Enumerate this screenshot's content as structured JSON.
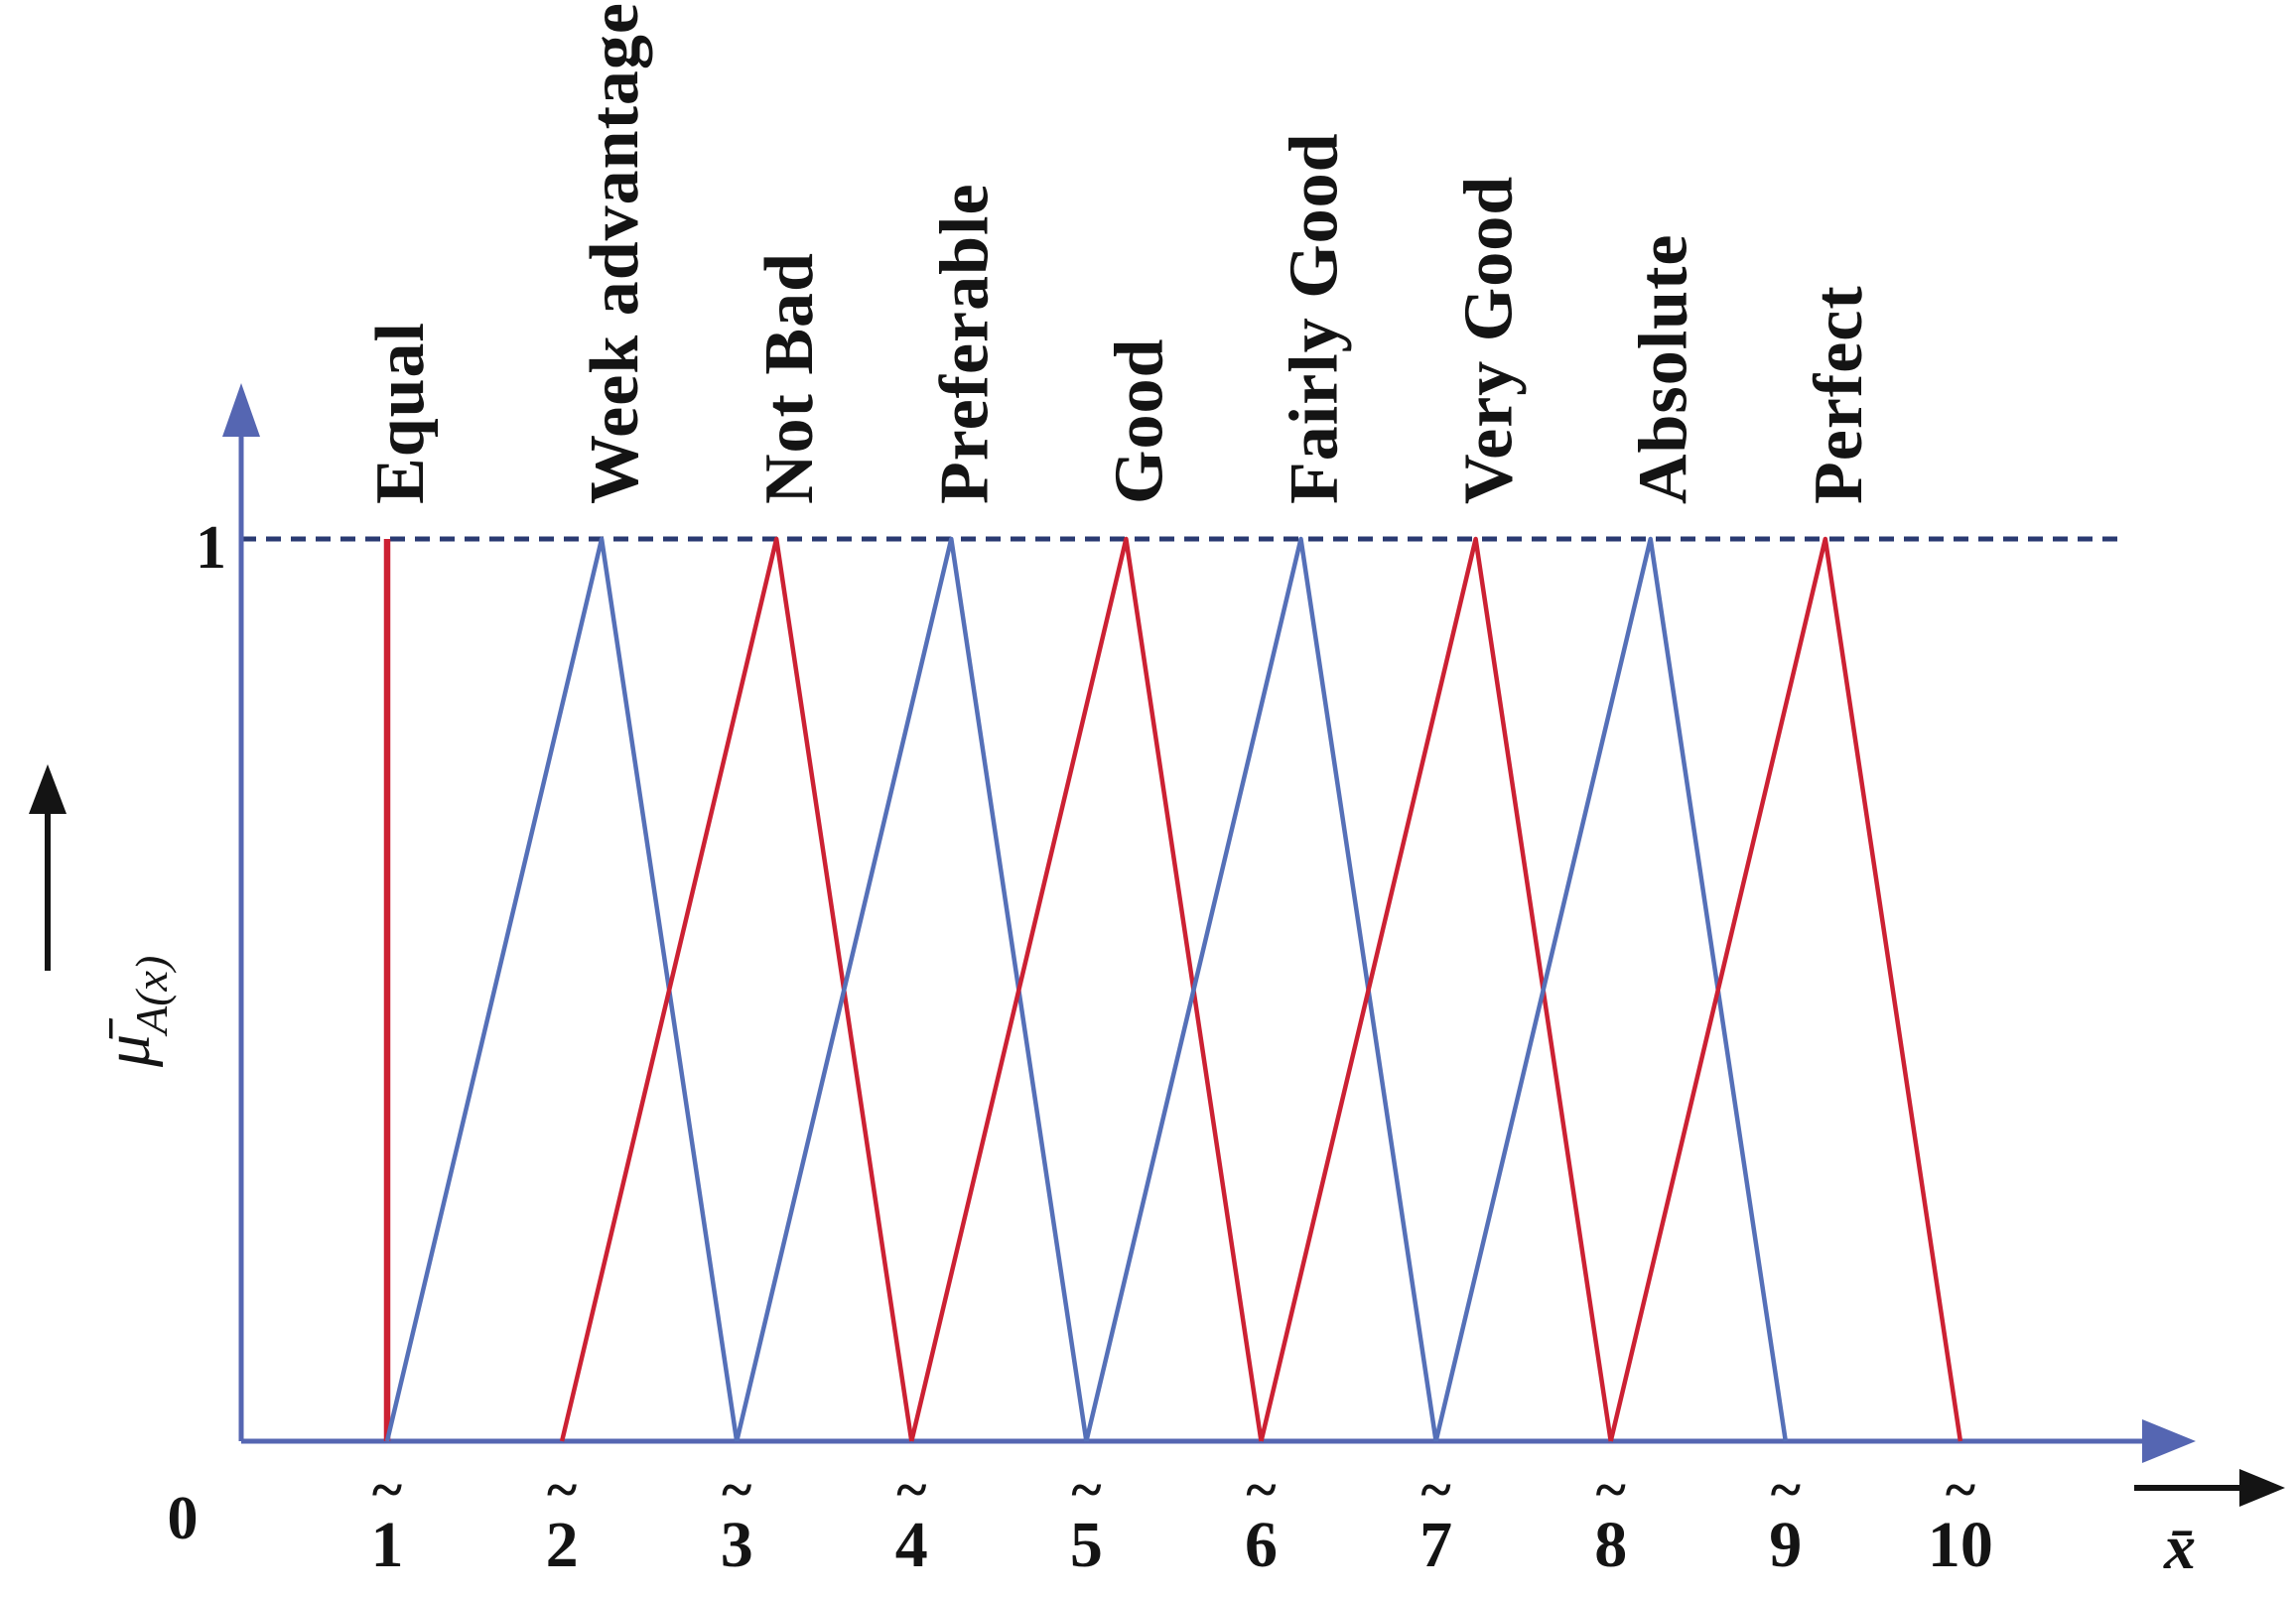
{
  "style": {
    "axis_color": "#5566b2",
    "dashed_line_color": "#2a3a72",
    "text_color": "#141414",
    "red": "#cc2133",
    "blue": "#5570b8"
  },
  "chart_data": {
    "type": "line",
    "description_of_plot": "Triangular fuzzy membership functions of a 1-10 linguistic comparison scale",
    "xlabel": "x̄",
    "ylabel": "μ̄A(x)",
    "ylabel_base": "μ̄",
    "ylabel_sub": "A(x)",
    "xlim": [
      0,
      11.5
    ],
    "ylim": [
      0,
      1
    ],
    "grid": false,
    "legend_position": "none",
    "y_tick_top": "1",
    "y_tick_origin": "0",
    "x_tick_accent": "~",
    "x_ticks": [
      "1",
      "2",
      "3",
      "4",
      "5",
      "6",
      "7",
      "8",
      "9",
      "10"
    ],
    "reference_line": {
      "y": 1,
      "style": "dashed"
    },
    "series": [
      {
        "name": "Equal",
        "color": "#cc2133",
        "points": [
          [
            1,
            0
          ],
          [
            1,
            1
          ]
        ]
      },
      {
        "name": "Week advantage",
        "color": "#5570b8",
        "points": [
          [
            1,
            0
          ],
          [
            2,
            1
          ],
          [
            3,
            0
          ]
        ]
      },
      {
        "name": "Not Bad",
        "color": "#cc2133",
        "points": [
          [
            2,
            0
          ],
          [
            3,
            1
          ],
          [
            4,
            0
          ]
        ]
      },
      {
        "name": "Preferable",
        "color": "#5570b8",
        "points": [
          [
            3,
            0
          ],
          [
            4,
            1
          ],
          [
            5,
            0
          ]
        ]
      },
      {
        "name": "Good",
        "color": "#cc2133",
        "points": [
          [
            4,
            0
          ],
          [
            5,
            1
          ],
          [
            6,
            0
          ]
        ]
      },
      {
        "name": "Fairly Good",
        "color": "#5570b8",
        "points": [
          [
            5,
            0
          ],
          [
            6,
            1
          ],
          [
            7,
            0
          ]
        ]
      },
      {
        "name": "Very Good",
        "color": "#cc2133",
        "points": [
          [
            6,
            0
          ],
          [
            7,
            1
          ],
          [
            8,
            0
          ]
        ]
      },
      {
        "name": "Absolute",
        "color": "#5570b8",
        "points": [
          [
            7,
            0
          ],
          [
            8,
            1
          ],
          [
            9,
            0
          ]
        ]
      },
      {
        "name": "Perfect",
        "color": "#cc2133",
        "points": [
          [
            8,
            0
          ],
          [
            9,
            1
          ],
          [
            10,
            0
          ]
        ]
      }
    ]
  }
}
